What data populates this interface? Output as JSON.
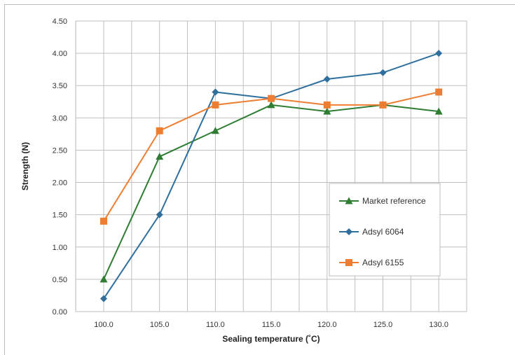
{
  "chart_data": {
    "type": "line",
    "title": "",
    "xlabel": "Sealing temperature (˚C)",
    "ylabel": "Strength (N)",
    "categories": [
      "100.0",
      "105.0",
      "110.0",
      "115.0",
      "120.0",
      "125.0",
      "130.0"
    ],
    "y_ticks": [
      "0.00",
      "0.50",
      "1.00",
      "1.50",
      "2.00",
      "2.50",
      "3.00",
      "3.50",
      "4.00",
      "4.50"
    ],
    "ylim": [
      0,
      4.5
    ],
    "grid": true,
    "legend_position": "right",
    "series": [
      {
        "name": "Market reference",
        "color": "#2e7d32",
        "marker": "triangle",
        "values": [
          0.5,
          2.4,
          2.8,
          3.2,
          3.1,
          3.2,
          3.1
        ]
      },
      {
        "name": "Adsyl 6064",
        "color": "#2e6f9e",
        "marker": "diamond",
        "values": [
          0.2,
          1.5,
          3.4,
          3.3,
          3.6,
          3.7,
          4.0
        ]
      },
      {
        "name": "Adsyl 6155",
        "color": "#ed7d31",
        "marker": "square",
        "values": [
          1.4,
          2.8,
          3.2,
          3.3,
          3.2,
          3.2,
          3.4
        ]
      }
    ]
  }
}
